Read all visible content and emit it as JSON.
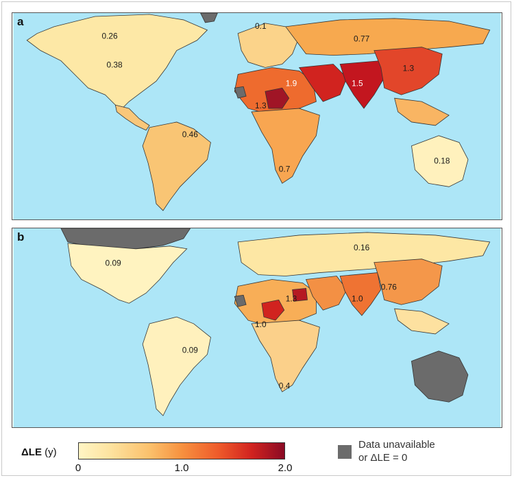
{
  "panels": [
    {
      "letter": "a",
      "labels": [
        "0.26",
        "0.38",
        "0.1",
        "0.77",
        "1.9",
        "1.5",
        "1.3",
        "1.3",
        "0.46",
        "0.7",
        "0.18"
      ]
    },
    {
      "letter": "b",
      "labels": [
        "0.09",
        "0.16",
        "1.3",
        "1.0",
        "0.76",
        "1.0",
        "0.09",
        "0.4"
      ]
    }
  ],
  "legend": {
    "title_symbol": "ΔLE",
    "title_unit": "(y)",
    "ticks": [
      "0",
      "1.0",
      "2.0"
    ],
    "tick_values": [
      0,
      1.0,
      2.0
    ],
    "range": [
      0,
      2.0
    ],
    "unavailable_line1": "Data unavailable",
    "unavailable_line2": "or ΔLE = 0"
  },
  "colors": {
    "ocean": "#ade6f7",
    "unavailable": "#6b6b6b",
    "scale_low": "#fff5c4",
    "scale_mid": "#f7913f",
    "scale_high": "#8a0a24"
  }
}
